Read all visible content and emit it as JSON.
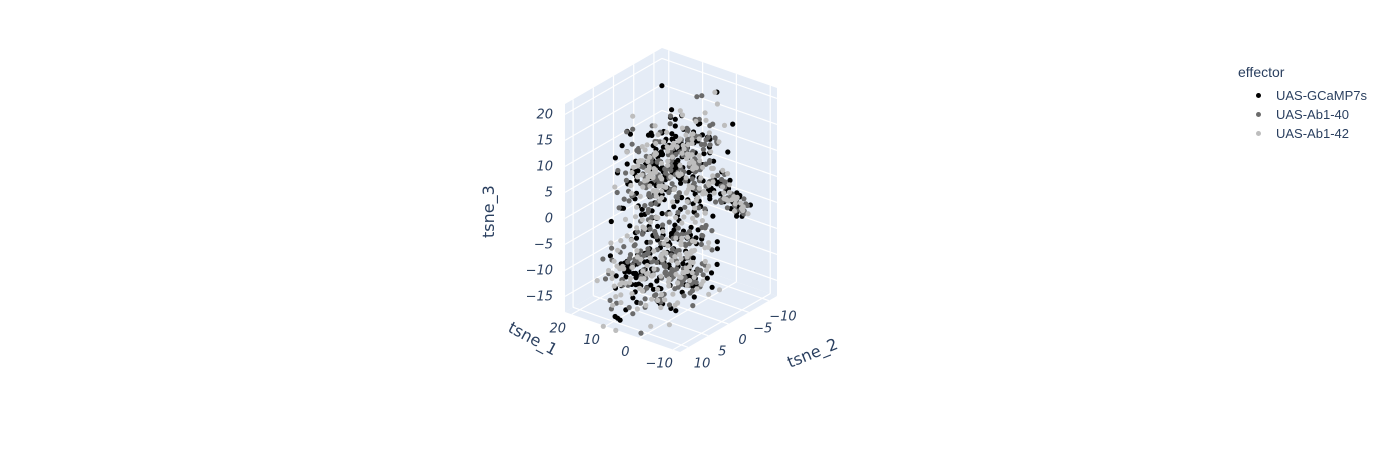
{
  "chart_data": {
    "type": "scatter",
    "title": "",
    "axes": {
      "x": {
        "label": "tsne_1",
        "ticks": [
          20,
          10,
          0,
          -10
        ],
        "range": [
          -20,
          22
        ]
      },
      "y": {
        "label": "tsne_2",
        "ticks": [
          10,
          5,
          0,
          -5,
          -10
        ],
        "range": [
          -12,
          13
        ]
      },
      "z": {
        "label": "tsne_3",
        "ticks": [
          20,
          15,
          10,
          5,
          0,
          -5,
          -10,
          -15
        ],
        "range": [
          -18,
          22
        ]
      }
    },
    "tick_labels": {
      "x": [
        "20",
        "10",
        "0",
        "−10"
      ],
      "y": [
        "10",
        "5",
        "0",
        "−5",
        "−10"
      ],
      "z": [
        "20",
        "15",
        "10",
        "5",
        "0",
        "−5",
        "−10",
        "−15"
      ]
    },
    "legend": {
      "title": "effector",
      "placement": "top-right",
      "entries": [
        {
          "name": "UAS-GCaMP7s",
          "color": "#000000"
        },
        {
          "name": "UAS-Ab1-40",
          "color": "#6b6b6b"
        },
        {
          "name": "UAS-Ab1-42",
          "color": "#bdbdbd"
        }
      ]
    },
    "series": [
      {
        "name": "UAS-GCaMP7s",
        "color": "#000000",
        "approx_points": 380
      },
      {
        "name": "UAS-Ab1-40",
        "color": "#6b6b6b",
        "approx_points": 330
      },
      {
        "name": "UAS-Ab1-42",
        "color": "#bdbdbd",
        "approx_points": 290
      }
    ],
    "grid": true,
    "background": "#e5ecf6"
  }
}
